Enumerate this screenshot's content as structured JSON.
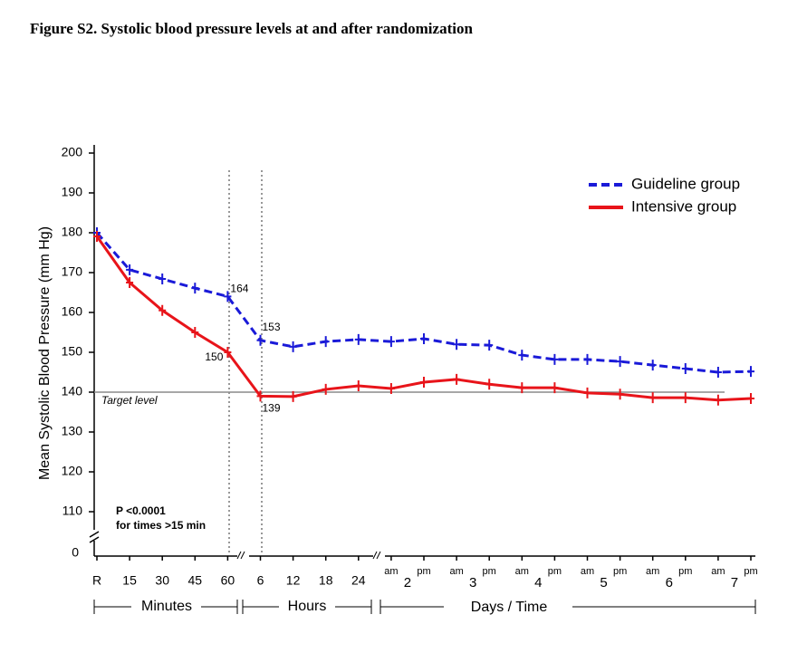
{
  "chart_data": {
    "type": "line",
    "title": "Figure S2.  Systolic blood pressure levels at and after randomization",
    "y_label": "Mean Systolic Blood Pressure (mm Hg)",
    "categories": [
      "R",
      "15",
      "30",
      "45",
      "60",
      "6",
      "12",
      "18",
      "24",
      "am",
      "pm",
      "am",
      "pm",
      "am",
      "pm",
      "am",
      "pm",
      "am",
      "pm",
      "am",
      "pm"
    ],
    "day_labels": [
      "2",
      "3",
      "4",
      "5",
      "6",
      "7"
    ],
    "groups": [
      "Minutes",
      "Hours",
      "Days / Time"
    ],
    "series": [
      {
        "name": "Guideline group",
        "color": "#1a1ad8",
        "dash": true,
        "values": [
          180,
          170.7,
          168.4,
          166.1,
          164,
          153,
          151.4,
          152.7,
          153.2,
          152.7,
          153.4,
          152,
          151.8,
          149.3,
          148.2,
          148.2,
          147.7,
          146.8,
          145.9,
          145,
          145.2
        ]
      },
      {
        "name": "Intensive group",
        "color": "#e8141a",
        "dash": false,
        "values": [
          179.1,
          167.5,
          160.5,
          155,
          150,
          139,
          138.9,
          140.7,
          141.6,
          140.9,
          142.5,
          143.2,
          142,
          141.1,
          141.1,
          139.8,
          139.5,
          138.6,
          138.6,
          138,
          138.4
        ]
      }
    ],
    "ylim": [
      100,
      200
    ],
    "yticks": [
      110,
      120,
      130,
      140,
      150,
      160,
      170,
      180,
      190,
      200
    ],
    "axis_break_label": "0",
    "target": {
      "value": 140,
      "label": "Target level"
    },
    "annotation": [
      "P <0.0001",
      "for times >15 min"
    ],
    "legend": "top-right"
  }
}
